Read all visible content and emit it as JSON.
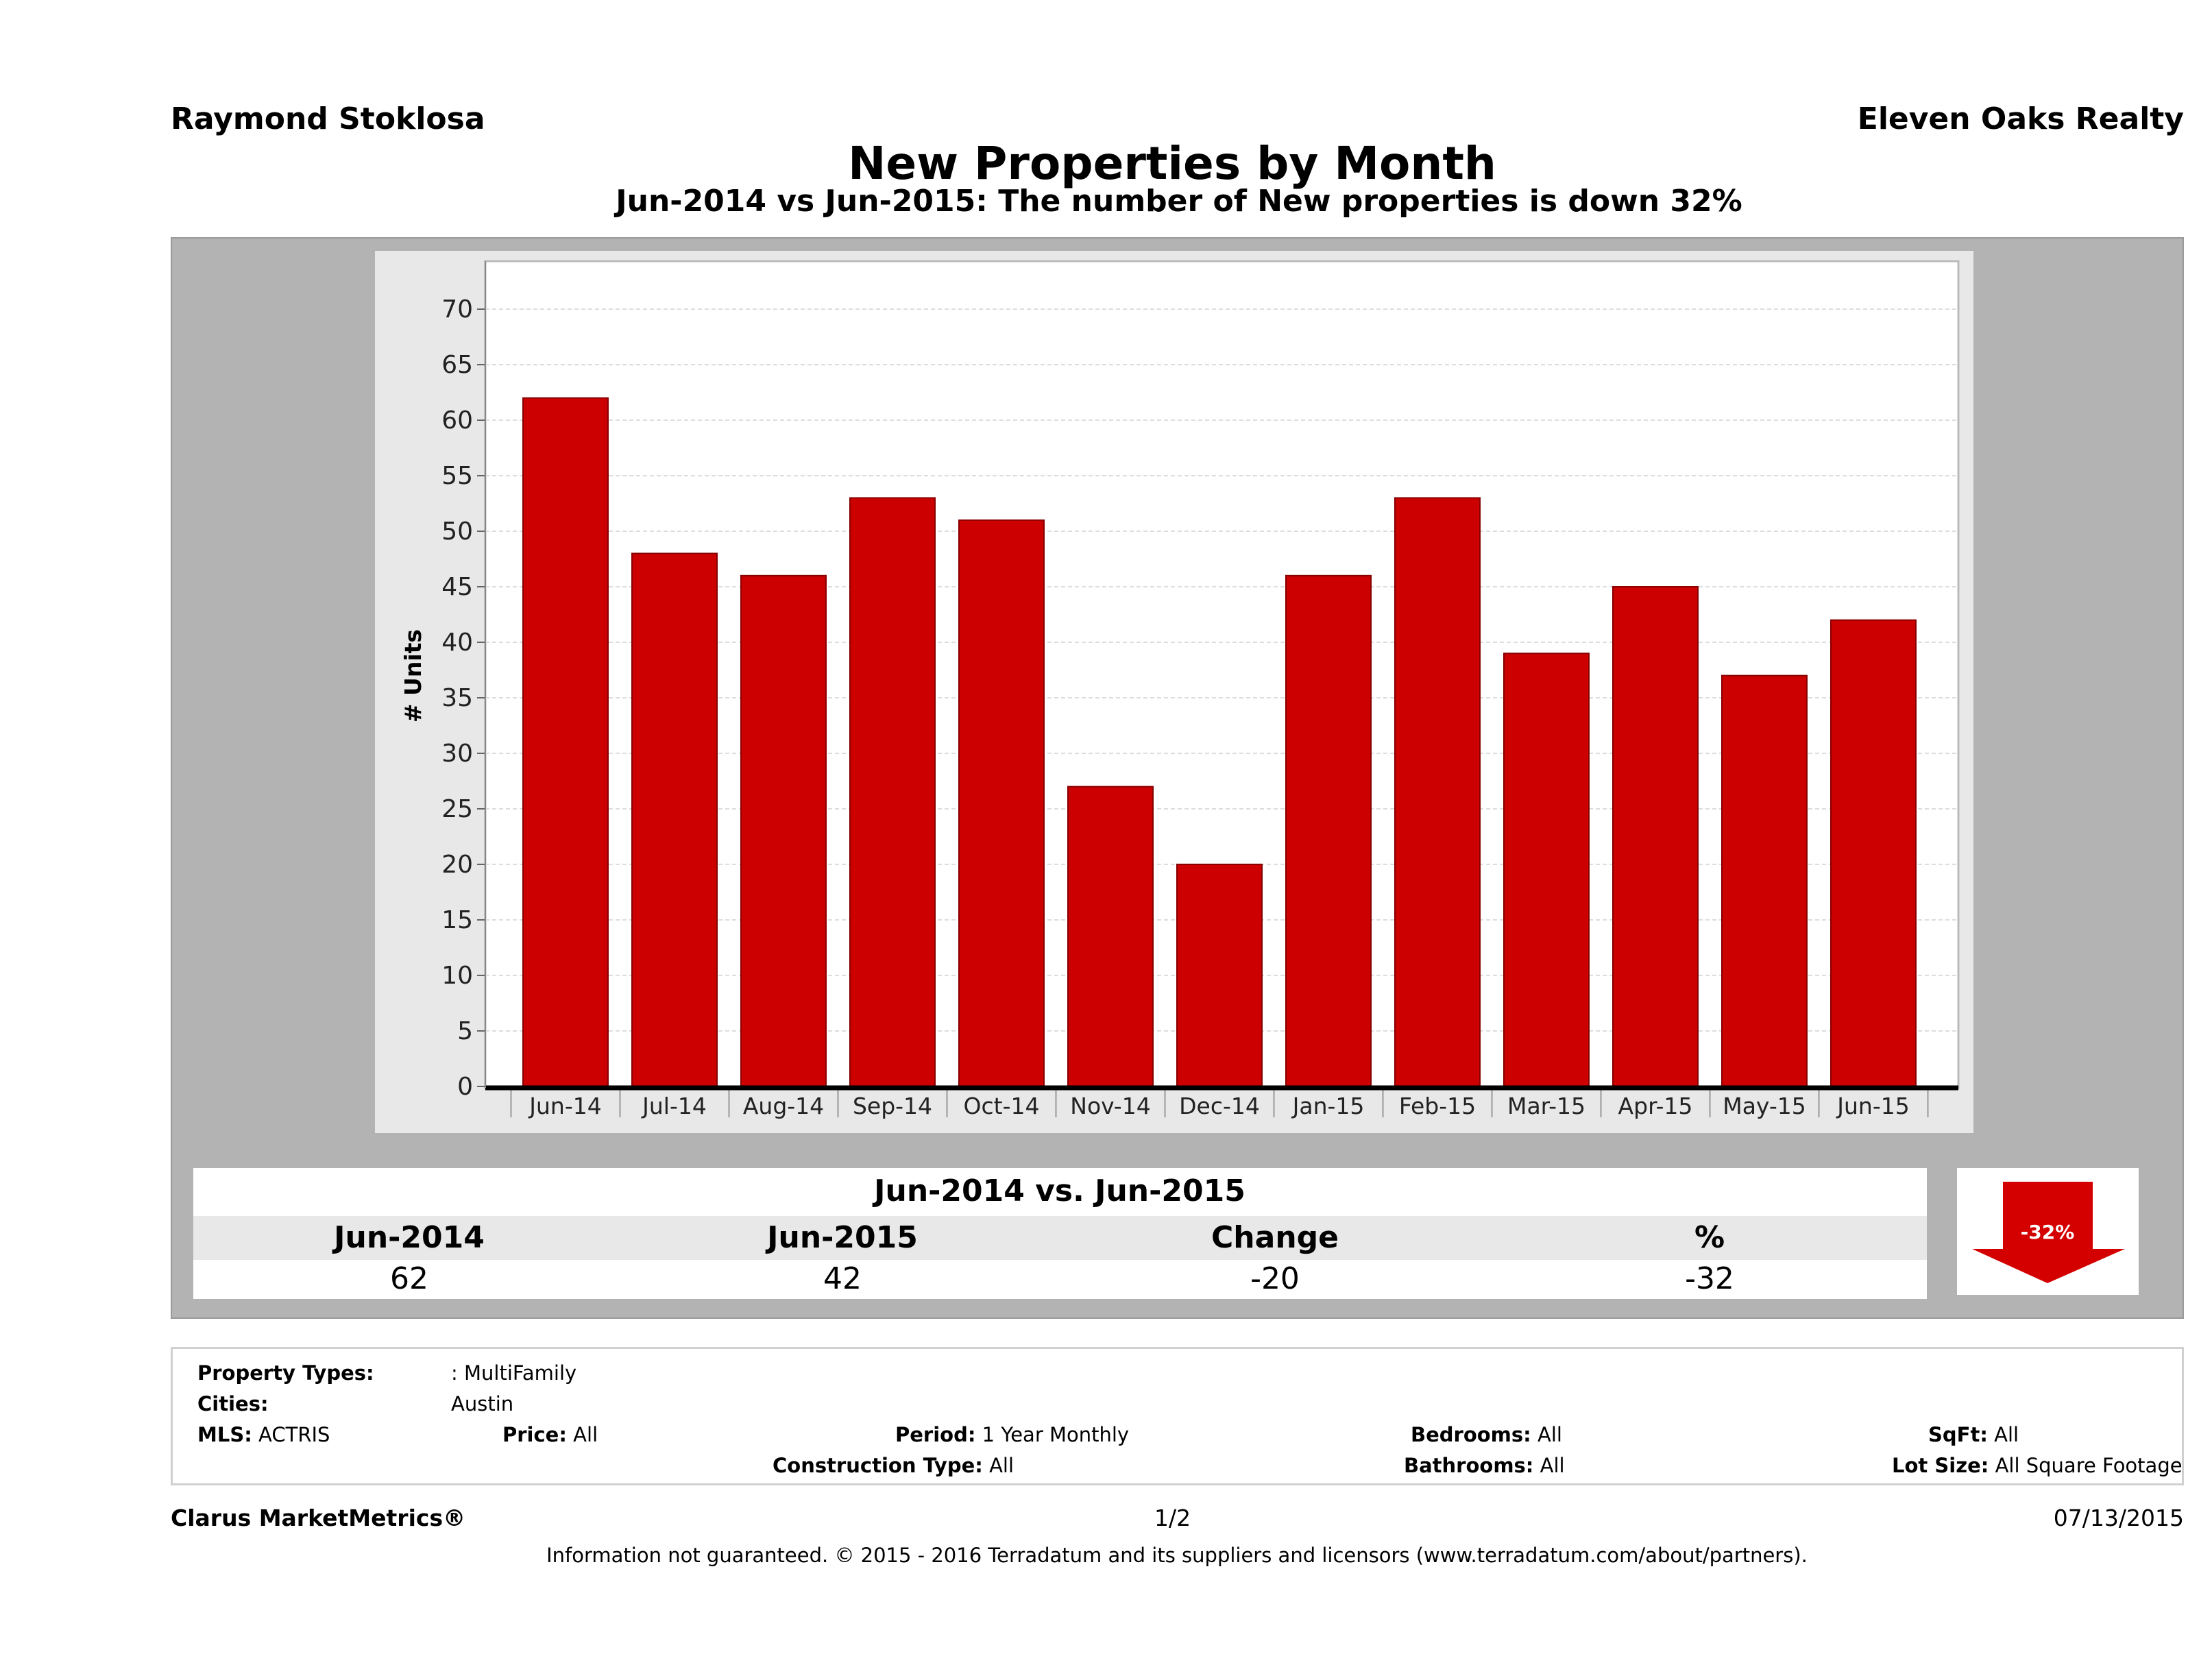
{
  "header": {
    "left": "Raymond Stoklosa",
    "right": "Eleven Oaks Realty"
  },
  "chart_data": {
    "type": "bar",
    "title": "New Properties by Month",
    "subtitle": "Jun-2014 vs Jun-2015: The number of New  properties is down 32%",
    "ylabel": "# Units",
    "xlabel": "",
    "ylim": [
      0,
      70
    ],
    "yticks": [
      0,
      5,
      10,
      15,
      20,
      25,
      30,
      35,
      40,
      45,
      50,
      55,
      60,
      65,
      70
    ],
    "grid": true,
    "categories": [
      "Jun-14",
      "Jul-14",
      "Aug-14",
      "Sep-14",
      "Oct-14",
      "Nov-14",
      "Dec-14",
      "Jan-15",
      "Feb-15",
      "Mar-15",
      "Apr-15",
      "May-15",
      "Jun-15"
    ],
    "values": [
      62,
      48,
      46,
      53,
      51,
      27,
      20,
      46,
      53,
      39,
      45,
      37,
      42
    ],
    "bar_color": "#cc0000"
  },
  "summary": {
    "title": "Jun-2014 vs. Jun-2015",
    "headers": [
      "Jun-2014",
      "Jun-2015",
      "Change",
      "%"
    ],
    "values": [
      "62",
      "42",
      "-20",
      "-32"
    ],
    "badge": "-32%"
  },
  "filters": {
    "property_types_label": "Property Types:",
    "property_types": ": MultiFamily",
    "cities_label": "Cities:",
    "cities": "Austin",
    "mls_label": "MLS:",
    "mls": "ACTRIS",
    "price_label": "Price:",
    "price": "All",
    "period_label": "Period:",
    "period": "1 Year Monthly",
    "bedrooms_label": "Bedrooms:",
    "bedrooms": "All",
    "sqft_label": "SqFt:",
    "sqft": "All",
    "construction_label": "Construction Type:",
    "construction": "All",
    "bathrooms_label": "Bathrooms:",
    "bathrooms": "All",
    "lot_label": "Lot Size:",
    "lot": "All Square Footage"
  },
  "footer": {
    "brand": "Clarus MarketMetrics®",
    "page": "1/2",
    "date": "07/13/2015",
    "disclaimer": "Information not guaranteed. © 2015 - 2016 Terradatum and its suppliers and licensors (www.terradatum.com/about/partners)."
  }
}
